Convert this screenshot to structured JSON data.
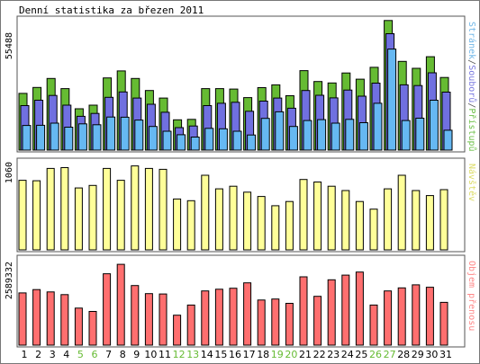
{
  "chart_data": [
    {
      "type": "bar",
      "title": "Denní statistika za březen 2011",
      "ymax_label": "55488",
      "side_label_parts": [
        {
          "text": "Stránek",
          "color": "#6fb6e8"
        },
        {
          "text": "/",
          "color": "#555555"
        },
        {
          "text": "Souborů",
          "color": "#7a7ae0"
        },
        {
          "text": "/",
          "color": "#555555"
        },
        {
          "text": "Přístupů",
          "color": "#6fc24b"
        }
      ],
      "ylim": [
        0,
        55488
      ],
      "categories": [
        "1",
        "2",
        "3",
        "4",
        "5",
        "6",
        "7",
        "8",
        "9",
        "10",
        "11",
        "12",
        "13",
        "14",
        "15",
        "16",
        "17",
        "18",
        "19",
        "20",
        "21",
        "22",
        "23",
        "24",
        "25",
        "26",
        "27",
        "28",
        "29",
        "30",
        "31"
      ],
      "series": [
        {
          "name": "Přístupů",
          "color": "#66bb33",
          "values": [
            24000,
            26500,
            30300,
            26000,
            17500,
            19000,
            30500,
            33500,
            30300,
            25200,
            22000,
            12800,
            13000,
            26000,
            26000,
            25800,
            22200,
            26400,
            27600,
            23000,
            33600,
            29000,
            28400,
            32600,
            30000,
            35000,
            54800,
            37500,
            34600,
            39500,
            30700
          ]
        },
        {
          "name": "Souborů",
          "color": "#7070e0",
          "values": [
            18800,
            21100,
            23100,
            19000,
            14300,
            15500,
            22300,
            24600,
            22000,
            19400,
            16000,
            9500,
            10200,
            18800,
            19800,
            20200,
            16400,
            20700,
            22000,
            17700,
            25200,
            23200,
            22100,
            25400,
            22800,
            28300,
            49200,
            27600,
            27300,
            32700,
            24500
          ]
        },
        {
          "name": "Stránek",
          "color": "#66b8f2",
          "values": [
            10400,
            10500,
            11400,
            9700,
            11100,
            10700,
            14000,
            13900,
            12700,
            10000,
            8000,
            6500,
            5500,
            9200,
            9000,
            8000,
            6400,
            13400,
            16200,
            10000,
            12500,
            12900,
            11400,
            13000,
            11600,
            19800,
            42700,
            12500,
            13500,
            21100,
            8400
          ]
        }
      ]
    },
    {
      "type": "bar",
      "ymax_label": "1060",
      "side_label_parts": [
        {
          "text": "Návštěv",
          "color": "#dcdc66"
        }
      ],
      "ylim": [
        0,
        1060
      ],
      "categories": [
        "1",
        "2",
        "3",
        "4",
        "5",
        "6",
        "7",
        "8",
        "9",
        "10",
        "11",
        "12",
        "13",
        "14",
        "15",
        "16",
        "17",
        "18",
        "19",
        "20",
        "21",
        "22",
        "23",
        "24",
        "25",
        "26",
        "27",
        "28",
        "29",
        "30",
        "31"
      ],
      "series": [
        {
          "name": "Návštěv",
          "color": "#ffff99",
          "values": [
            820,
            815,
            960,
            970,
            730,
            760,
            960,
            820,
            990,
            960,
            950,
            600,
            580,
            880,
            720,
            750,
            680,
            630,
            520,
            570,
            830,
            800,
            750,
            700,
            570,
            480,
            720,
            880,
            700,
            640,
            710
          ]
        }
      ]
    },
    {
      "type": "bar",
      "ymax_label": "2589332",
      "side_label_parts": [
        {
          "text": "Objem přenosu",
          "color": "#ff8888"
        }
      ],
      "ylim": [
        0,
        2589332
      ],
      "categories": [
        "1",
        "2",
        "3",
        "4",
        "5",
        "6",
        "7",
        "8",
        "9",
        "10",
        "11",
        "12",
        "13",
        "14",
        "15",
        "16",
        "17",
        "18",
        "19",
        "20",
        "21",
        "22",
        "23",
        "24",
        "25",
        "26",
        "27",
        "28",
        "29",
        "30",
        "31"
      ],
      "series": [
        {
          "name": "Objem přenosu",
          "color": "#ff6f6f",
          "values": [
            1550000,
            1650000,
            1580000,
            1500000,
            1100000,
            1000000,
            2120000,
            2400000,
            1770000,
            1530000,
            1520000,
            890000,
            1190000,
            1610000,
            1660000,
            1690000,
            1850000,
            1340000,
            1370000,
            1240000,
            2030000,
            1450000,
            1940000,
            2080000,
            2170000,
            1190000,
            1610000,
            1700000,
            1790000,
            1720000,
            1270000
          ]
        }
      ]
    }
  ],
  "weekend_days": [
    "5",
    "6",
    "12",
    "13",
    "19",
    "20",
    "26",
    "27"
  ],
  "colors": {
    "frame_border": "#555555",
    "bar_stroke": "#000000",
    "weekday_text": "#000000",
    "weekend_text": "#66bb33"
  }
}
